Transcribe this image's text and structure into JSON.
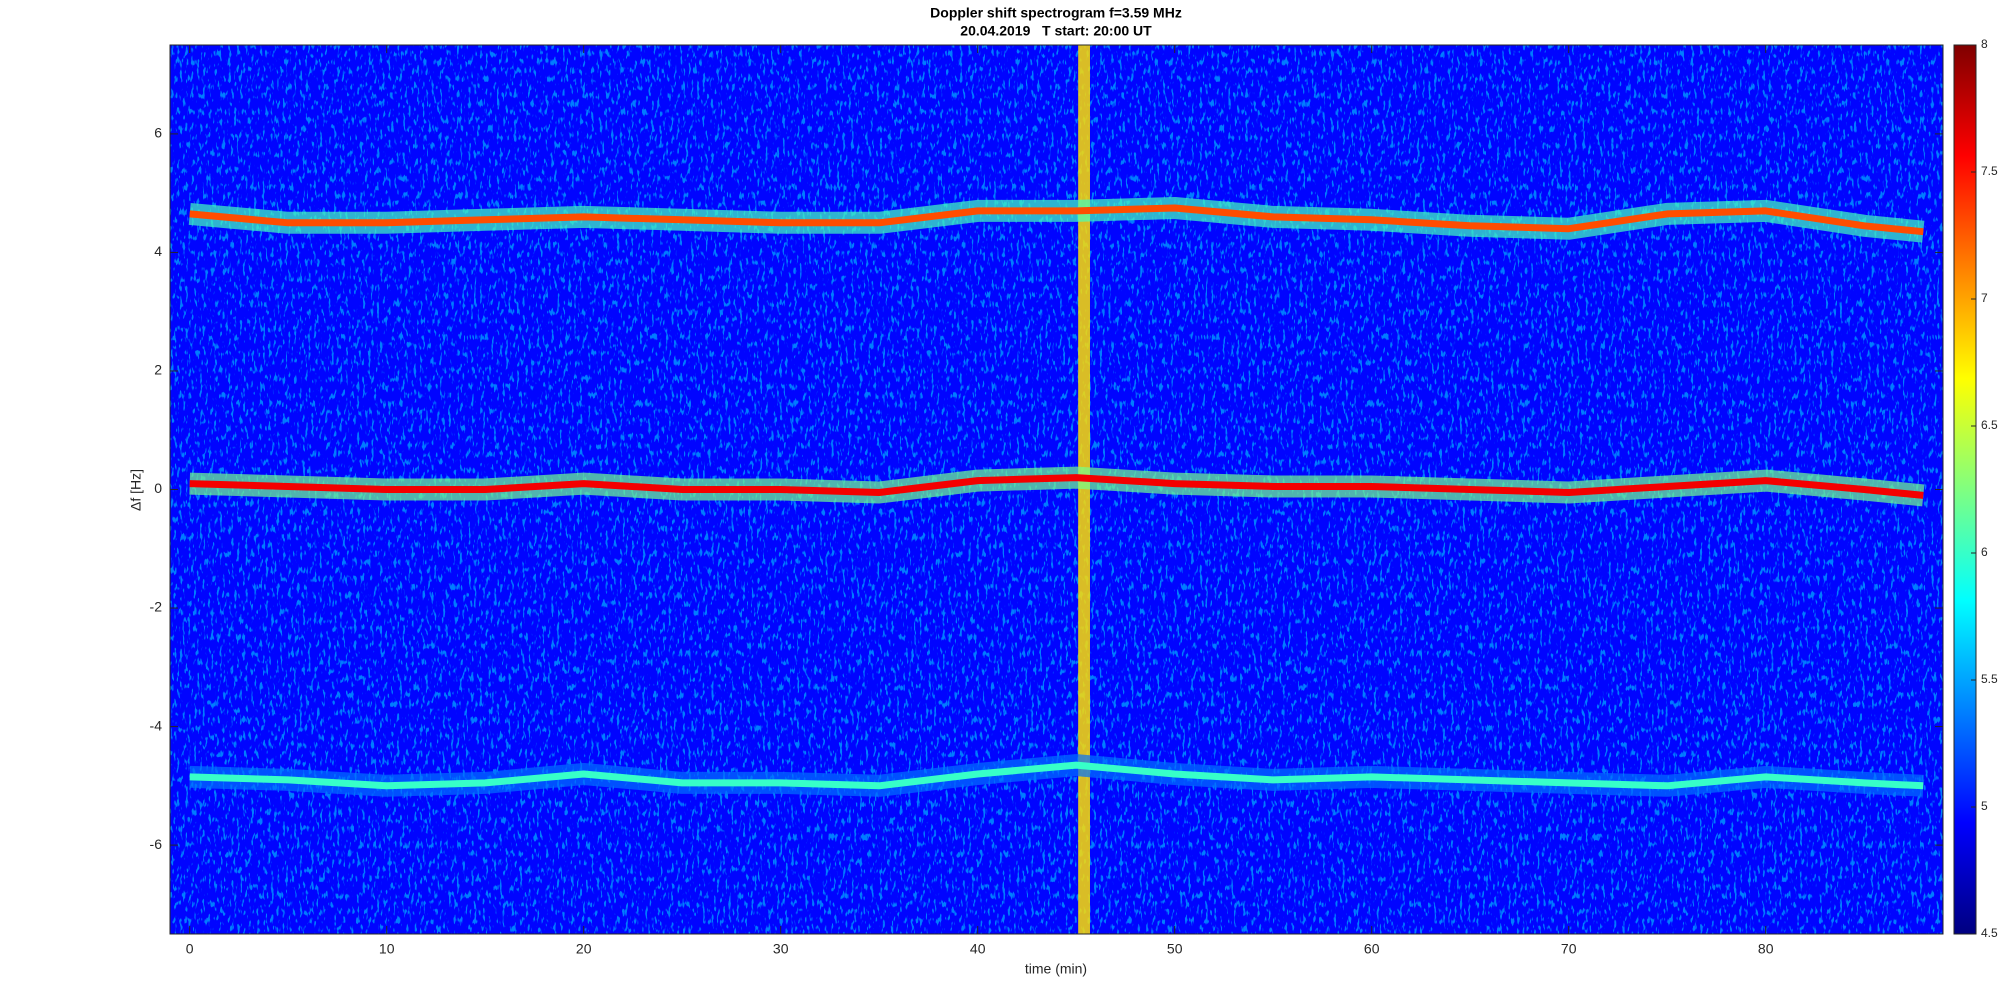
{
  "chart_data": {
    "type": "spectrogram",
    "title": "Doppler shift spectrogram f=3.59 MHz",
    "subtitle": "20.04.2019   T start: 20:00 UT",
    "x_label": "time (min)",
    "y_label": "Δf [Hz]",
    "xlim": [
      -1,
      89
    ],
    "xticks": [
      0,
      10,
      20,
      30,
      40,
      50,
      60,
      70,
      80
    ],
    "ylim": [
      -7.5,
      7.5
    ],
    "yticks": [
      -6,
      -4,
      -2,
      0,
      2,
      4,
      6
    ],
    "colormap": "jet",
    "clim": [
      4.5,
      8
    ],
    "cticks": [
      4.5,
      5,
      5.5,
      6,
      6.5,
      7,
      7.5,
      8
    ],
    "background_level": 4.95,
    "x": [
      0,
      5,
      10,
      15,
      20,
      25,
      30,
      35,
      40,
      45,
      50,
      55,
      60,
      65,
      70,
      75,
      80,
      85,
      88
    ],
    "series": [
      {
        "level": 7.3,
        "values": [
          4.65,
          4.5,
          4.5,
          4.55,
          4.6,
          4.55,
          4.5,
          4.5,
          4.7,
          4.7,
          4.75,
          4.6,
          4.55,
          4.45,
          4.4,
          4.65,
          4.7,
          4.45,
          4.35
        ]
      },
      {
        "level": 7.6,
        "values": [
          0.1,
          0.05,
          0.0,
          0.0,
          0.1,
          0.0,
          0.0,
          -0.05,
          0.15,
          0.2,
          0.1,
          0.05,
          0.05,
          0.0,
          -0.05,
          0.05,
          0.15,
          0.0,
          -0.1
        ]
      },
      {
        "level": 6.0,
        "values": [
          -4.85,
          -4.9,
          -5.0,
          -4.95,
          -4.8,
          -4.95,
          -4.95,
          -5.0,
          -4.8,
          -4.65,
          -4.8,
          -4.9,
          -4.85,
          -4.9,
          -4.95,
          -5.0,
          -4.85,
          -4.95,
          -5.0
        ]
      }
    ],
    "bursts": [
      {
        "x": 45.4,
        "level": 6.8
      }
    ]
  }
}
